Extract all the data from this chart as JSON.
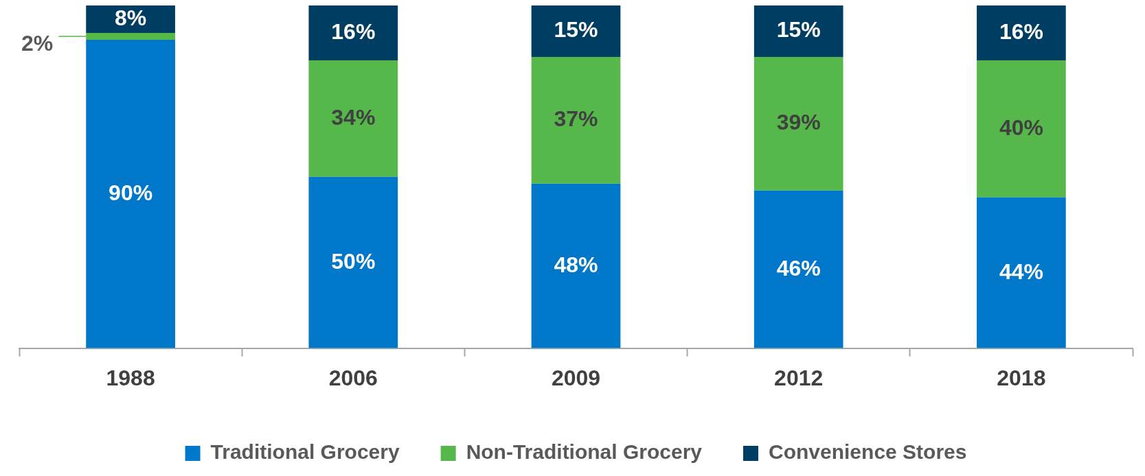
{
  "chart_data": {
    "type": "bar",
    "stacked": true,
    "categories": [
      "1988",
      "2006",
      "2009",
      "2012",
      "2018"
    ],
    "series": [
      {
        "name": "Traditional Grocery",
        "color": "#0077c8",
        "values": [
          90,
          50,
          48,
          46,
          44
        ],
        "value_labels": [
          "90%",
          "50%",
          "48%",
          "46%",
          "44%"
        ]
      },
      {
        "name": "Non-Traditional Grocery",
        "color": "#56b84a",
        "values": [
          2,
          34,
          37,
          39,
          40
        ],
        "value_labels": [
          "2%",
          "34%",
          "37%",
          "39%",
          "40%"
        ]
      },
      {
        "name": "Convenience Stores",
        "color": "#003d63",
        "values": [
          8,
          16,
          15,
          15,
          16
        ],
        "value_labels": [
          "8%",
          "16%",
          "15%",
          "15%",
          "16%"
        ]
      }
    ],
    "tick_labels": "x",
    "legend": "bottom",
    "grid": false
  }
}
